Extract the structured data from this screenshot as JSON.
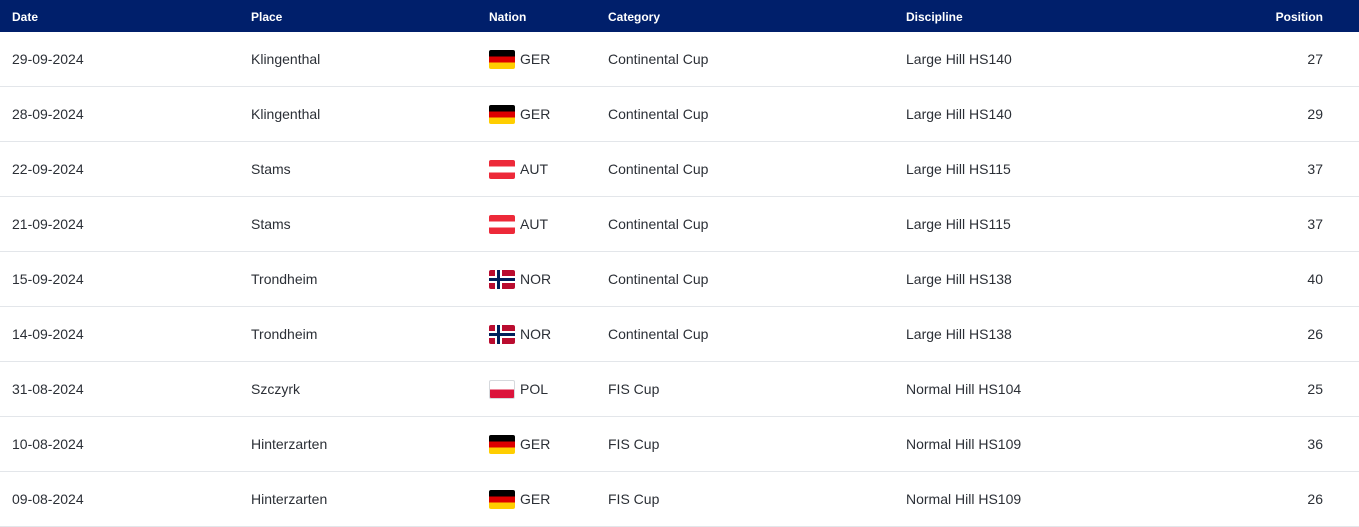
{
  "header": {
    "date": "Date",
    "place": "Place",
    "nation": "Nation",
    "category": "Category",
    "discipline": "Discipline",
    "position": "Position"
  },
  "colors": {
    "header_bg": "#001f6b",
    "row_border": "#e3e6ea"
  },
  "rows": [
    {
      "date": "29-09-2024",
      "place": "Klingenthal",
      "flag": "ger-flag-icon",
      "nation": "GER",
      "category": "Continental Cup",
      "discipline": "Large Hill HS140",
      "position": "27"
    },
    {
      "date": "28-09-2024",
      "place": "Klingenthal",
      "flag": "ger-flag-icon",
      "nation": "GER",
      "category": "Continental Cup",
      "discipline": "Large Hill HS140",
      "position": "29"
    },
    {
      "date": "22-09-2024",
      "place": "Stams",
      "flag": "aut-flag-icon",
      "nation": "AUT",
      "category": "Continental Cup",
      "discipline": "Large Hill HS115",
      "position": "37"
    },
    {
      "date": "21-09-2024",
      "place": "Stams",
      "flag": "aut-flag-icon",
      "nation": "AUT",
      "category": "Continental Cup",
      "discipline": "Large Hill HS115",
      "position": "37"
    },
    {
      "date": "15-09-2024",
      "place": "Trondheim",
      "flag": "nor-flag-icon",
      "nation": "NOR",
      "category": "Continental Cup",
      "discipline": "Large Hill HS138",
      "position": "40"
    },
    {
      "date": "14-09-2024",
      "place": "Trondheim",
      "flag": "nor-flag-icon",
      "nation": "NOR",
      "category": "Continental Cup",
      "discipline": "Large Hill HS138",
      "position": "26"
    },
    {
      "date": "31-08-2024",
      "place": "Szczyrk",
      "flag": "pol-flag-icon",
      "nation": "POL",
      "category": "FIS Cup",
      "discipline": "Normal Hill HS104",
      "position": "25"
    },
    {
      "date": "10-08-2024",
      "place": "Hinterzarten",
      "flag": "ger-flag-icon",
      "nation": "GER",
      "category": "FIS Cup",
      "discipline": "Normal Hill HS109",
      "position": "36"
    },
    {
      "date": "09-08-2024",
      "place": "Hinterzarten",
      "flag": "ger-flag-icon",
      "nation": "GER",
      "category": "FIS Cup",
      "discipline": "Normal Hill HS109",
      "position": "26"
    }
  ]
}
